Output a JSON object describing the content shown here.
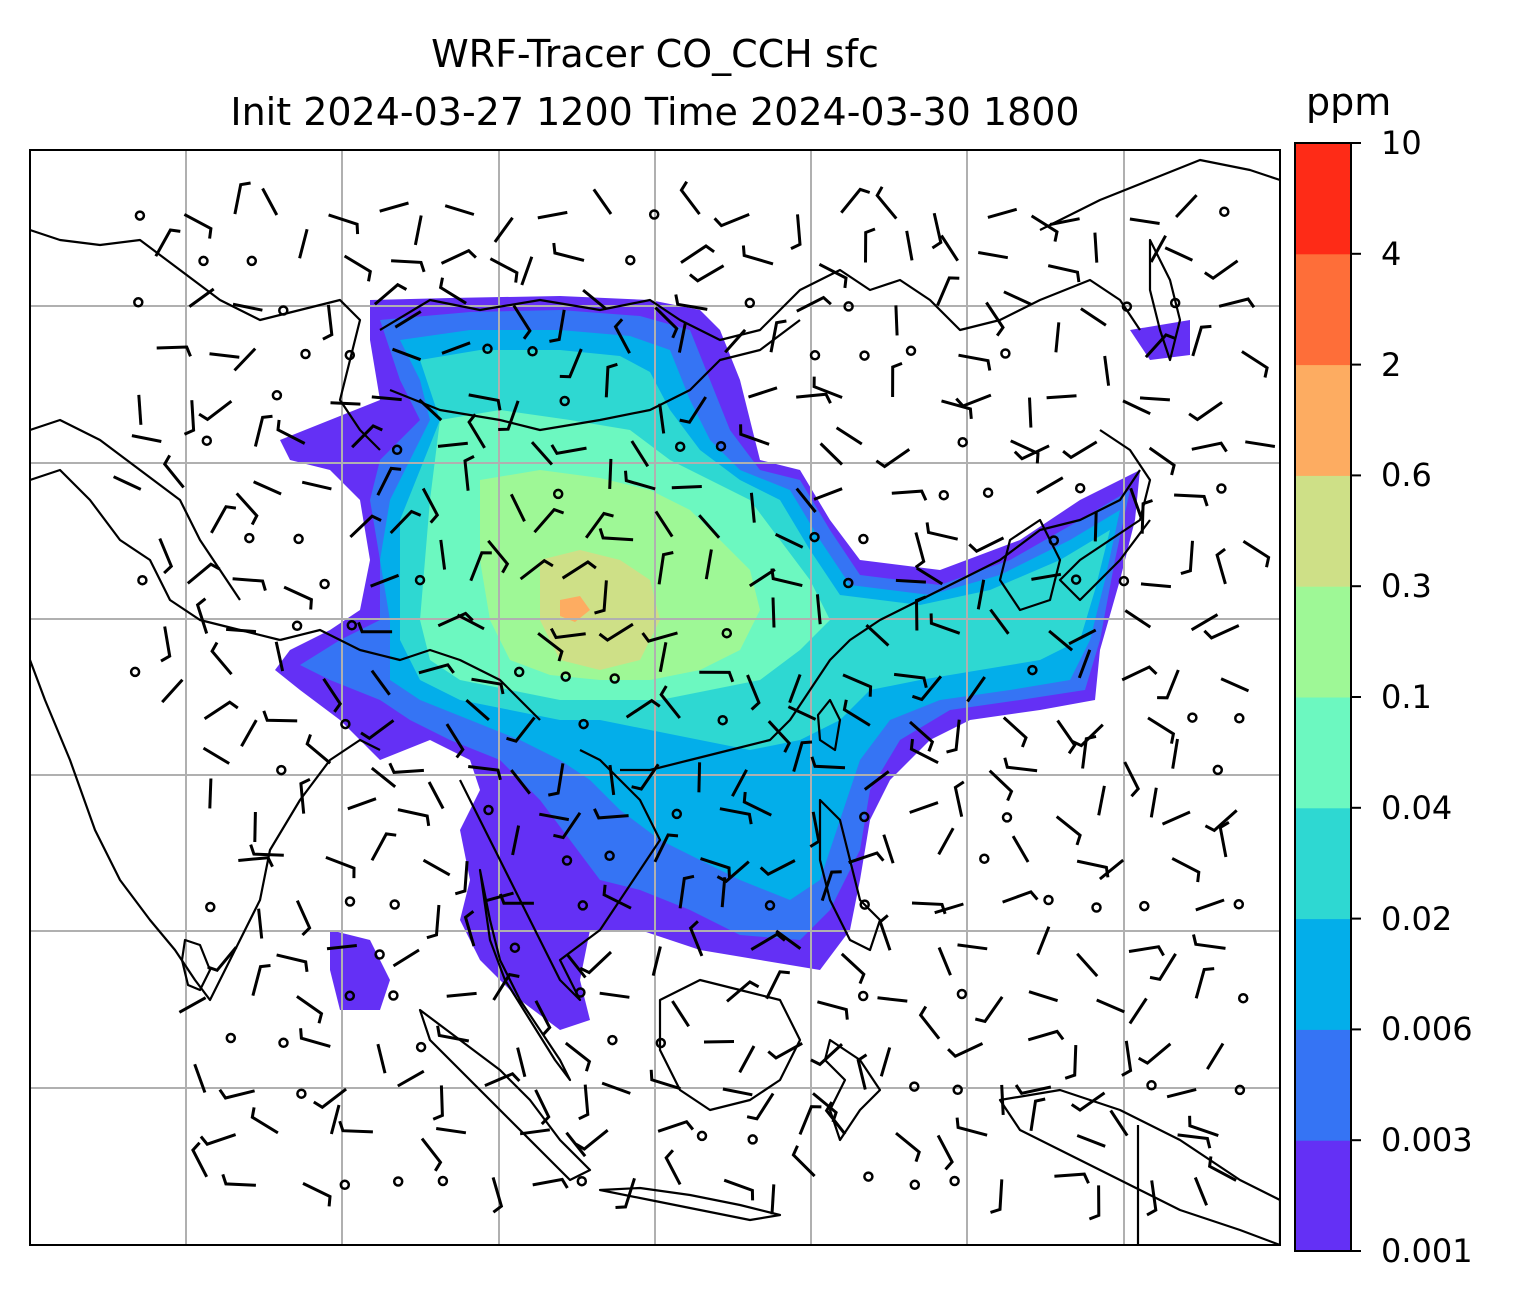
{
  "title": {
    "line1": "WRF-Tracer CO_CCH sfc",
    "line2": "Init 2024-03-27 1200 Time 2024-03-30 1800"
  },
  "colorbar": {
    "units": "ppm",
    "tick_labels": [
      "0.001",
      "0.003",
      "0.006",
      "0.02",
      "0.04",
      "0.1",
      "0.3",
      "0.6",
      "2",
      "4",
      "10"
    ],
    "colors": [
      "#6430f5",
      "#3574f4",
      "#03aeea",
      "#2ed8d2",
      "#6cf8c0",
      "#9ef896",
      "#cee087",
      "#fdac61",
      "#fe6e39",
      "#fe2b17"
    ]
  },
  "map": {
    "style": {
      "gridlines": true,
      "grid_color": "#b0b0b0",
      "coastline_color": "#000000",
      "barb_color": "#000000",
      "background": "#ffffff"
    },
    "field": "CO_CCH tracer concentration, surface",
    "overlay": "wind barbs with calm-circle markers"
  }
}
